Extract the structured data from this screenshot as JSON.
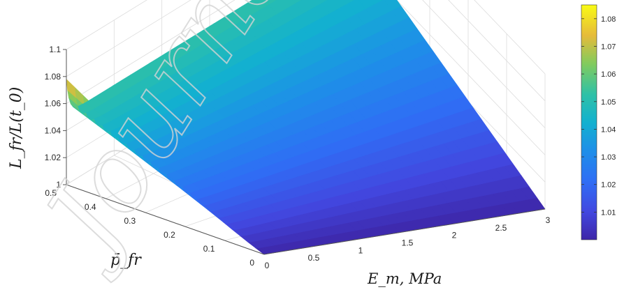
{
  "watermark": "Journal",
  "chart_data": {
    "type": "surface",
    "title": "",
    "xlabel": "E_m, MPa",
    "ylabel": "p̄_fr",
    "zlabel": "L_fr/L(t_0)",
    "xlim": [
      0,
      3
    ],
    "ylim": [
      0,
      0.5
    ],
    "zlim": [
      1,
      1.1
    ],
    "xticks": [
      "0",
      "0.5",
      "1",
      "1.5",
      "2",
      "2.5",
      "3"
    ],
    "yticks": [
      "0",
      "0.1",
      "0.2",
      "0.3",
      "0.4",
      "0.5"
    ],
    "zticks": [
      "1",
      "1.02",
      "1.04",
      "1.06",
      "1.08",
      "1.1"
    ],
    "grid": true,
    "colormap": "parula",
    "colorbar": {
      "limits": [
        1.0,
        1.085
      ],
      "ticks": [
        "1.01",
        "1.02",
        "1.03",
        "1.04",
        "1.05",
        "1.06",
        "1.07",
        "1.08"
      ]
    },
    "surface_corners": {
      "Em_0_p_0": 1.0,
      "Em_0_p_0.5": 1.078,
      "Em_3_p_0": 1.0,
      "Em_3_p_0.5": 1.052
    },
    "Em_near_0_p_0.5": 1.056
  }
}
